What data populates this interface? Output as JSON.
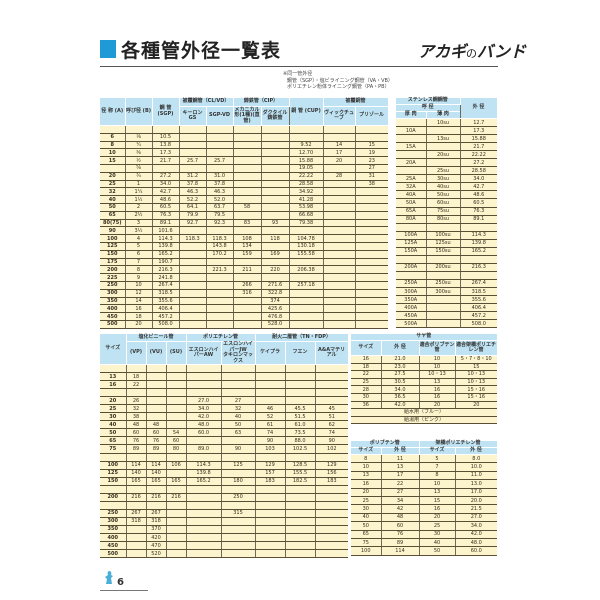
{
  "title": "各種管外径一覧表",
  "logo": {
    "brand": "アカギ",
    "no": "の",
    "suffix": "バンド"
  },
  "note": [
    "※同一管外径",
    "鋼管（SGP）・塩ビライニング鋼管（VA・VB）",
    "ポリエチレン粉体ライニング鋼管（PA・PB）"
  ],
  "page_number": "6",
  "colors": {
    "accent": "#1e9ad6",
    "header_bg": "#bfe3f3",
    "cell_bg": "#fbf4cc"
  },
  "top_table": {
    "headers": {
      "a": "径 称 (A)",
      "b": "呼び径 (B)",
      "sgp": "鋼 管 (SGP)",
      "coated_steel": "被覆鋼管（CL/VD）",
      "gs": "キーロンGS",
      "vd": "SGP-VD",
      "cast": "鋳鉄管（CIP）",
      "mech": "メカニカル形(1種)(直管)",
      "ductile": "ダクタイル鋳鉄管",
      "cu": "銅 管 (CUP)",
      "coated_cu": "被覆銅管",
      "vic": "ヴィックチューブ",
      "pri": "プリゾール"
    },
    "rows": [
      [
        "",
        "",
        "",
        "",
        "",
        "",
        "",
        "",
        "",
        ""
      ],
      [
        "6",
        "⅛",
        "10.5",
        "",
        "",
        "",
        "",
        "",
        "",
        ""
      ],
      [
        "8",
        "¼",
        "13.8",
        "",
        "",
        "",
        "",
        "9.52",
        "14",
        "15"
      ],
      [
        "10",
        "⅜",
        "17.3",
        "",
        "",
        "",
        "",
        "12.70",
        "17",
        "19"
      ],
      [
        "15",
        "½",
        "21.7",
        "25.7",
        "25.7",
        "",
        "",
        "15.88",
        "20",
        "23"
      ],
      [
        "",
        "⅝",
        "",
        "",
        "",
        "",
        "",
        "19.05",
        "",
        "27"
      ],
      [
        "20",
        "¾",
        "27.2",
        "31.2",
        "31.0",
        "",
        "",
        "22.22",
        "28",
        "31"
      ],
      [
        "25",
        "1",
        "34.0",
        "37.8",
        "37.8",
        "",
        "",
        "28.58",
        "",
        "38"
      ],
      [
        "32",
        "1¼",
        "42.7",
        "46.3",
        "46.3",
        "",
        "",
        "34.92",
        "",
        ""
      ],
      [
        "40",
        "1½",
        "48.6",
        "52.2",
        "52.0",
        "",
        "",
        "41.28",
        "",
        ""
      ],
      [
        "50",
        "2",
        "60.5",
        "64.1",
        "63.7",
        "58",
        "",
        "53.98",
        "",
        ""
      ],
      [
        "65",
        "2½",
        "76.3",
        "79.9",
        "79.5",
        "",
        "",
        "66.68",
        "",
        ""
      ],
      [
        "80(75)",
        "3",
        "89.1",
        "92.7",
        "92.3",
        "83",
        "93",
        "79.38",
        "",
        ""
      ],
      [
        "90",
        "3½",
        "101.6",
        "",
        "",
        "",
        "",
        "",
        "",
        ""
      ],
      [
        "100",
        "4",
        "114.3",
        "118.3",
        "118.3",
        "108",
        "118",
        "104.78",
        "",
        ""
      ],
      [
        "125",
        "5",
        "139.8",
        "",
        "143.8",
        "134",
        "",
        "130.18",
        "",
        ""
      ],
      [
        "150",
        "6",
        "165.2",
        "",
        "170.2",
        "159",
        "169",
        "155.58",
        "",
        ""
      ],
      [
        "175",
        "7",
        "190.7",
        "",
        "",
        "",
        "",
        "",
        "",
        ""
      ],
      [
        "200",
        "8",
        "216.3",
        "",
        "221.3",
        "211",
        "220",
        "206.38",
        "",
        ""
      ],
      [
        "225",
        "9",
        "241.8",
        "",
        "",
        "",
        "",
        "",
        "",
        ""
      ],
      [
        "250",
        "10",
        "267.4",
        "",
        "",
        "266",
        "271.6",
        "257.18",
        "",
        ""
      ],
      [
        "300",
        "12",
        "318.5",
        "",
        "",
        "316",
        "322.8",
        "",
        "",
        ""
      ],
      [
        "350",
        "14",
        "355.6",
        "",
        "",
        "",
        "374",
        "",
        "",
        ""
      ],
      [
        "400",
        "16",
        "406.4",
        "",
        "",
        "",
        "425.6",
        "",
        "",
        ""
      ],
      [
        "450",
        "18",
        "457.2",
        "",
        "",
        "",
        "476.8",
        "",
        "",
        ""
      ],
      [
        "500",
        "20",
        "508.0",
        "",
        "",
        "",
        "528.0",
        "",
        "",
        ""
      ]
    ]
  },
  "sus_table": {
    "headers": {
      "title": "ステンレス鋼鋼管",
      "nominal": "呼 径",
      "thick": "厚 肉",
      "thin": "薄 肉",
      "od": "外 径"
    },
    "rows": [
      [
        "",
        "10su",
        "12.7"
      ],
      [
        "10A",
        "",
        "17.3"
      ],
      [
        "",
        "13su",
        "15.88"
      ],
      [
        "15A",
        "",
        "21.7"
      ],
      [
        "",
        "20su",
        "22.22"
      ],
      [
        "20A",
        "",
        "27.2"
      ],
      [
        "",
        "25su",
        "28.58"
      ],
      [
        "25A",
        "30su",
        "34.0"
      ],
      [
        "32A",
        "40su",
        "42.7"
      ],
      [
        "40A",
        "50su",
        "48.6"
      ],
      [
        "50A",
        "60su",
        "60.5"
      ],
      [
        "65A",
        "75su",
        "76.3"
      ],
      [
        "80A",
        "80su",
        "89.1"
      ],
      [
        "",
        "",
        ""
      ],
      [
        "100A",
        "100su",
        "114.3"
      ],
      [
        "125A",
        "125su",
        "139.8"
      ],
      [
        "150A",
        "150su",
        "165.2"
      ],
      [
        "",
        "",
        ""
      ],
      [
        "200A",
        "200su",
        "216.3"
      ],
      [
        "",
        "",
        ""
      ],
      [
        "250A",
        "250su",
        "267.4"
      ],
      [
        "300A",
        "300su",
        "318.5"
      ],
      [
        "350A",
        "",
        "355.6"
      ],
      [
        "400A",
        "",
        "406.4"
      ],
      [
        "450A",
        "",
        "457.2"
      ],
      [
        "500A",
        "",
        "508.0"
      ]
    ]
  },
  "bottom_table": {
    "headers": {
      "size": "サイズ",
      "pvc": "塩化ビニール管",
      "vp": "(VP)",
      "vu": "(VU)",
      "su": "(SU)",
      "pe": "ポリエチレン管",
      "aw": "エスロンハイパーAW",
      "jw": "エスロンハイパーJW",
      "jw2": "タキロンマックス",
      "fdp": "耐火二層管（TN・FDP）",
      "keipura": "ケイプラ",
      "fuen": "フエン",
      "aaa": "A&Aマテリアル"
    },
    "rows": [
      [
        "",
        "",
        "",
        "",
        "",
        "",
        "",
        "",
        ""
      ],
      [
        "13",
        "18",
        "",
        "",
        "",
        "",
        "",
        "",
        ""
      ],
      [
        "16",
        "22",
        "",
        "",
        "",
        "",
        "",
        "",
        ""
      ],
      [
        "",
        "",
        "",
        "",
        "",
        "",
        "",
        "",
        ""
      ],
      [
        "20",
        "26",
        "",
        "",
        "27.0",
        "27",
        "",
        "",
        ""
      ],
      [
        "25",
        "32",
        "",
        "",
        "34.0",
        "32",
        "46",
        "45.5",
        "45"
      ],
      [
        "30",
        "38",
        "",
        "",
        "42.0",
        "40",
        "52",
        "51.5",
        "51"
      ],
      [
        "40",
        "48",
        "48",
        "",
        "48.0",
        "50",
        "61",
        "61.0",
        "62"
      ],
      [
        "50",
        "60",
        "60",
        "54",
        "60.0",
        "63",
        "74",
        "73.5",
        "74"
      ],
      [
        "65",
        "76",
        "76",
        "60",
        "",
        "",
        "90",
        "88.0",
        "90"
      ],
      [
        "75",
        "89",
        "89",
        "80",
        "89.0",
        "90",
        "103",
        "102.5",
        "102"
      ],
      [
        "",
        "",
        "",
        "",
        "",
        "",
        "",
        "",
        ""
      ],
      [
        "100",
        "114",
        "114",
        "106",
        "114.3",
        "125",
        "129",
        "128.5",
        "129"
      ],
      [
        "125",
        "140",
        "140",
        "",
        "139.8",
        "",
        "157",
        "155.5",
        "156"
      ],
      [
        "150",
        "165",
        "165",
        "165",
        "165.2",
        "180",
        "183",
        "182.5",
        "183"
      ],
      [
        "",
        "",
        "",
        "",
        "",
        "",
        "",
        "",
        ""
      ],
      [
        "200",
        "216",
        "216",
        "216",
        "",
        "250",
        "",
        "",
        ""
      ],
      [
        "",
        "",
        "",
        "",
        "",
        "",
        "",
        "",
        ""
      ],
      [
        "250",
        "267",
        "267",
        "",
        "",
        "315",
        "",
        "",
        ""
      ],
      [
        "300",
        "318",
        "318",
        "",
        "",
        "",
        "",
        "",
        ""
      ],
      [
        "350",
        "",
        "370",
        "",
        "",
        "",
        "",
        "",
        ""
      ],
      [
        "400",
        "",
        "420",
        "",
        "",
        "",
        "",
        "",
        ""
      ],
      [
        "450",
        "",
        "470",
        "",
        "",
        "",
        "",
        "",
        ""
      ],
      [
        "500",
        "",
        "520",
        "",
        "",
        "",
        "",
        "",
        ""
      ]
    ]
  },
  "saya_table": {
    "headers": {
      "title": "サヤ管",
      "size": "サイズ",
      "od": "外 径",
      "pb": "適合ポリブテン管",
      "xpe": "適合架橋ポリエチレン管"
    },
    "rows": [
      [
        "16",
        "21.0",
        "10",
        "5・7・8・10"
      ],
      [
        "18",
        "23.0",
        "10",
        "15"
      ],
      [
        "22",
        "27.5",
        "10・13",
        "10・13"
      ],
      [
        "25",
        "30.5",
        "13",
        "10・13"
      ],
      [
        "28",
        "34.0",
        "16",
        "15・16"
      ],
      [
        "30",
        "36.5",
        "16",
        "15・16"
      ],
      [
        "36",
        "42.0",
        "20",
        "20"
      ]
    ],
    "notes": [
      "給水用（ブルー）",
      "給湯用（ピンク）"
    ]
  },
  "poly_table": {
    "headers": {
      "pb": "ポリブテン管",
      "xpe": "架橋ポリエチレン管",
      "size": "サイズ",
      "od": "外 径"
    },
    "rows": [
      [
        "8",
        "11",
        "5",
        "8.0"
      ],
      [
        "10",
        "13",
        "7",
        "10.0"
      ],
      [
        "13",
        "17",
        "8",
        "11.0"
      ],
      [
        "16",
        "22",
        "10",
        "13.0"
      ],
      [
        "20",
        "27",
        "13",
        "17.0"
      ],
      [
        "25",
        "34",
        "15",
        "20.0"
      ],
      [
        "30",
        "42",
        "16",
        "21.5"
      ],
      [
        "40",
        "48",
        "20",
        "27.0"
      ],
      [
        "50",
        "60",
        "25",
        "34.0"
      ],
      [
        "65",
        "76",
        "30",
        "42.0"
      ],
      [
        "75",
        "89",
        "40",
        "48.0"
      ],
      [
        "100",
        "114",
        "50",
        "60.0"
      ]
    ]
  }
}
